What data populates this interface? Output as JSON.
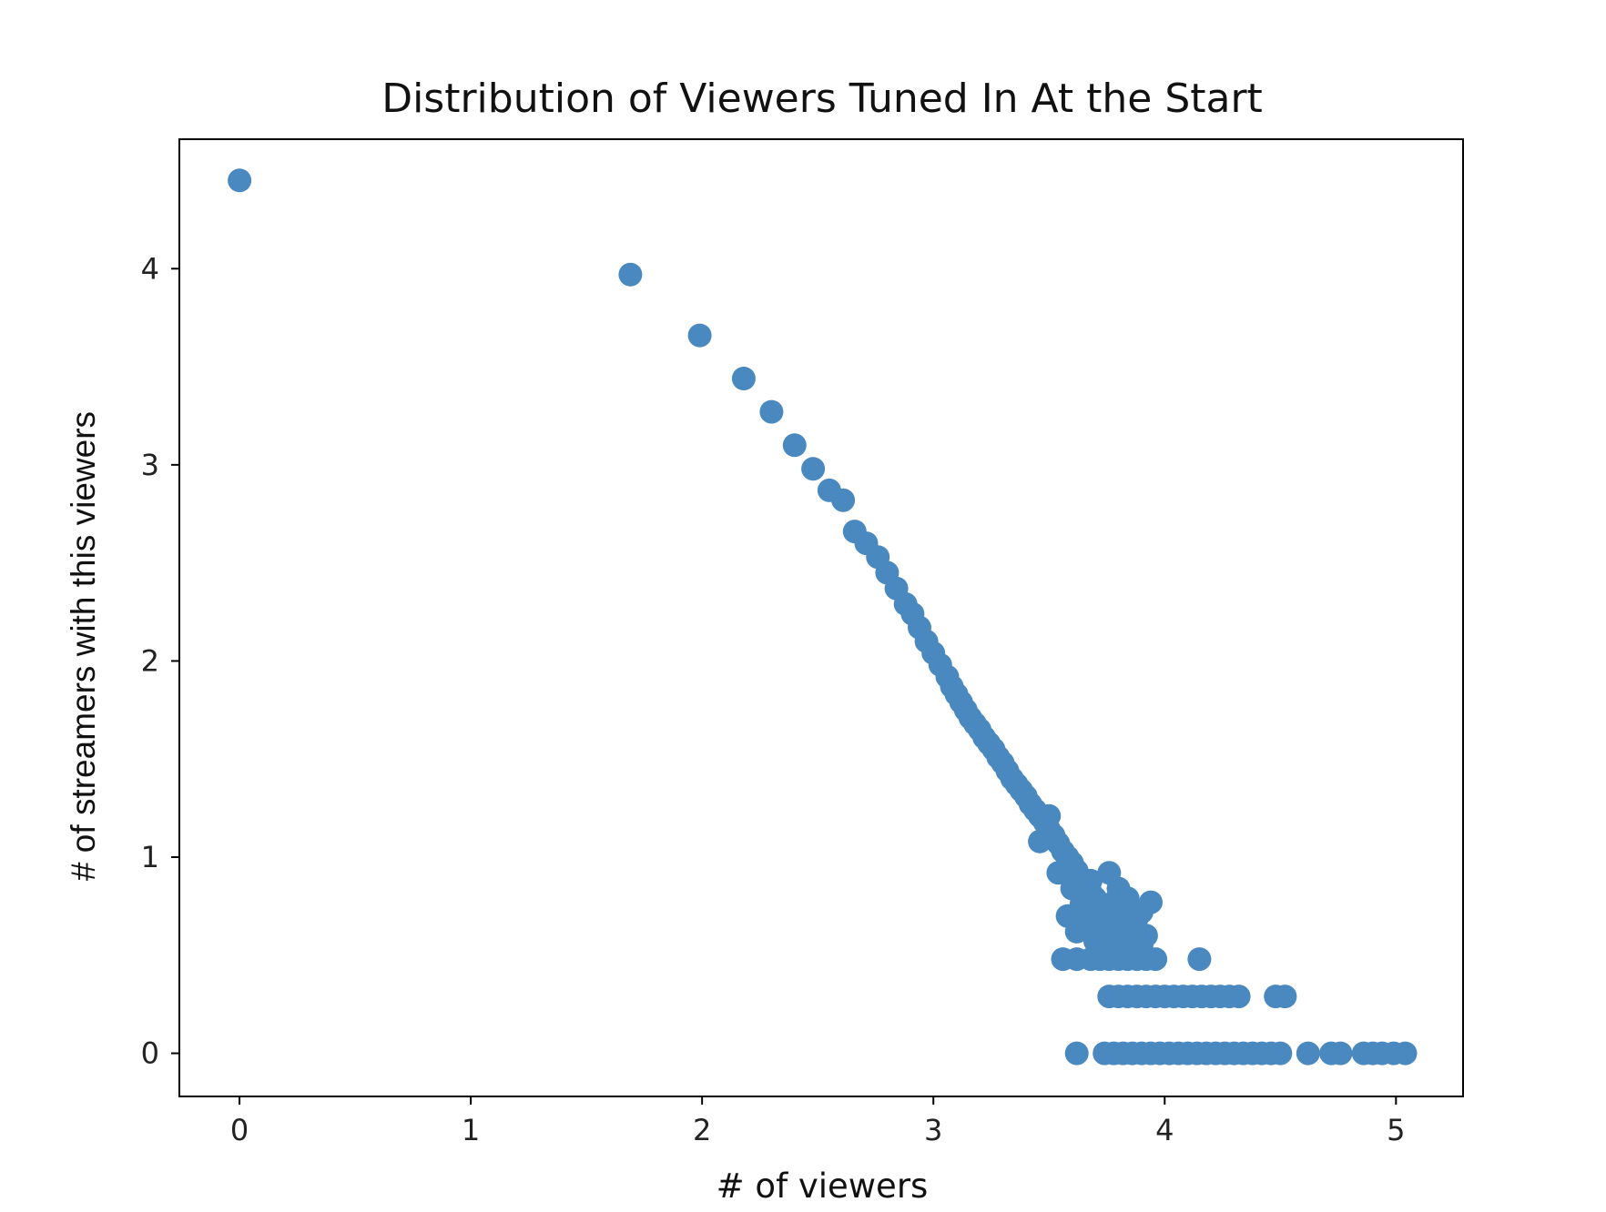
{
  "chart_data": {
    "type": "scatter",
    "title": "Distribution of Viewers Tuned In At the Start",
    "xlabel": "# of viewers",
    "ylabel": "# of streamers with this viewers",
    "xlim": [
      -0.26,
      5.29
    ],
    "ylim": [
      -0.22,
      4.66
    ],
    "xticks": [
      0,
      1,
      2,
      3,
      4,
      5
    ],
    "yticks": [
      0,
      1,
      2,
      3,
      4
    ],
    "grid": false,
    "marker_color": "#4a88c0",
    "x": [
      0.0,
      1.69,
      1.99,
      2.18,
      2.3,
      2.4,
      2.48,
      2.55,
      2.61,
      2.66,
      2.71,
      2.76,
      2.8,
      2.84,
      2.88,
      2.91,
      2.94,
      2.97,
      3.0,
      3.03,
      3.06,
      3.08,
      3.1,
      3.12,
      3.14,
      3.16,
      3.18,
      3.2,
      3.22,
      3.24,
      3.26,
      3.28,
      3.3,
      3.32,
      3.34,
      3.36,
      3.38,
      3.4,
      3.42,
      3.44,
      3.46,
      3.48,
      3.5,
      3.52,
      3.54,
      3.56,
      3.58,
      3.6,
      3.62,
      3.64,
      3.66,
      3.68,
      3.7,
      3.72,
      3.74,
      3.76,
      3.78,
      3.8,
      3.82,
      3.84,
      3.86,
      3.88,
      3.9,
      3.92,
      3.94,
      3.46,
      3.5,
      3.54,
      3.58,
      3.62,
      3.66,
      3.7,
      3.74,
      3.78,
      3.82,
      3.86,
      3.9,
      3.6,
      3.64,
      3.68,
      3.72,
      3.76,
      3.8,
      3.84,
      3.88,
      3.56,
      3.62,
      3.68,
      3.72,
      3.76,
      3.8,
      3.84,
      3.88,
      3.92,
      3.96,
      4.15,
      3.76,
      3.8,
      3.84,
      3.88,
      3.92,
      3.96,
      4.0,
      4.04,
      4.08,
      4.12,
      4.16,
      4.2,
      4.24,
      4.28,
      4.32,
      4.48,
      4.52,
      3.62,
      3.74,
      3.78,
      3.82,
      3.86,
      3.9,
      3.94,
      3.98,
      4.02,
      4.06,
      4.1,
      4.14,
      4.18,
      4.22,
      4.26,
      4.3,
      4.34,
      4.38,
      4.42,
      4.46,
      4.5,
      4.62,
      4.72,
      4.76,
      4.86,
      4.9,
      4.94,
      4.99,
      5.04
    ],
    "y": [
      4.45,
      3.97,
      3.66,
      3.44,
      3.27,
      3.1,
      2.98,
      2.87,
      2.82,
      2.66,
      2.6,
      2.53,
      2.45,
      2.37,
      2.29,
      2.24,
      2.17,
      2.1,
      2.04,
      1.98,
      1.92,
      1.87,
      1.83,
      1.79,
      1.75,
      1.71,
      1.68,
      1.65,
      1.61,
      1.58,
      1.55,
      1.51,
      1.48,
      1.44,
      1.4,
      1.37,
      1.34,
      1.31,
      1.27,
      1.24,
      1.21,
      1.18,
      1.14,
      1.11,
      1.07,
      1.03,
      1.0,
      0.97,
      0.93,
      0.89,
      0.86,
      0.82,
      0.79,
      0.76,
      0.73,
      0.7,
      0.77,
      0.72,
      0.67,
      0.74,
      0.64,
      0.69,
      0.72,
      0.6,
      0.77,
      1.08,
      1.21,
      0.92,
      0.7,
      0.62,
      0.67,
      0.57,
      0.64,
      0.55,
      0.6,
      0.58,
      0.55,
      0.84,
      0.76,
      0.88,
      0.66,
      0.92,
      0.84,
      0.79,
      0.63,
      0.48,
      0.48,
      0.48,
      0.48,
      0.48,
      0.48,
      0.48,
      0.48,
      0.48,
      0.48,
      0.48,
      0.29,
      0.29,
      0.29,
      0.29,
      0.29,
      0.29,
      0.29,
      0.29,
      0.29,
      0.29,
      0.29,
      0.29,
      0.29,
      0.29,
      0.29,
      0.29,
      0.29,
      0.0,
      0.0,
      0.0,
      0.0,
      0.0,
      0.0,
      0.0,
      0.0,
      0.0,
      0.0,
      0.0,
      0.0,
      0.0,
      0.0,
      0.0,
      0.0,
      0.0,
      0.0,
      0.0,
      0.0,
      0.0,
      0.0,
      0.0,
      0.0,
      0.0,
      0.0,
      0.0,
      0.0,
      0.0
    ]
  }
}
